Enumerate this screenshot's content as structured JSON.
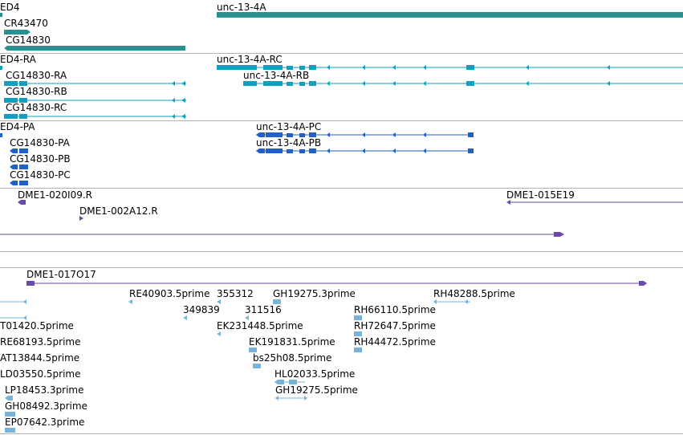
{
  "colors": {
    "gene": "#2a9090",
    "mrna": "#10a0c0",
    "protein": "#2060c8",
    "clone": "#6a4aa8",
    "est": "#78b4d8",
    "separator": "#b4b4b4"
  },
  "tracks": {
    "genes": {
      "labels": [
        "ED4",
        "unc-13-4A",
        "CR43470",
        "CG14830"
      ]
    },
    "mrnas": {
      "labels": [
        "ED4-RA",
        "unc-13-4A-RC",
        "CG14830-RA",
        "unc-13-4A-RB",
        "CG14830-RB",
        "CG14830-RC"
      ]
    },
    "proteins": {
      "labels": [
        "ED4-PA",
        "unc-13-4A-PC",
        "CG14830-PA",
        "unc-13-4A-PB",
        "CG14830-PB",
        "CG14830-PC"
      ]
    },
    "clones": {
      "labels": [
        "DME1-020I09.R",
        "DME1-015E19",
        "DME1-002A12.R",
        "DME1-017O17"
      ]
    },
    "ests": {
      "labels": [
        "RE40903.5prime",
        "355312",
        "GH19275.3prime",
        "RH48288.5prime",
        "349839",
        "311516",
        "RH66110.5prime",
        "T01420.5prime",
        "EK231448.5prime",
        "RH72647.5prime",
        "RE68193.5prime",
        "EK191831.5prime",
        "RH44472.5prime",
        "AT13844.5prime",
        "bs25h08.5prime",
        "LD03550.5prime",
        "HL02033.5prime",
        "LP18453.3prime",
        "GH19275.5prime",
        "GH08492.3prime",
        "EP07642.3prime"
      ]
    }
  }
}
